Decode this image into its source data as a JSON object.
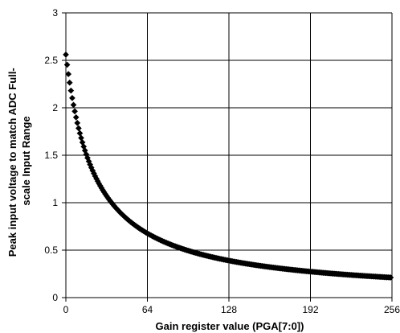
{
  "chart_data": {
    "type": "scatter",
    "xlabel": "Gain register value (PGA[7:0])",
    "ylabel_lines": [
      "Peak input voltage to match ADC Full-",
      "scale Input Range"
    ],
    "xlim": [
      0,
      256
    ],
    "ylim": [
      0,
      3
    ],
    "grid": true,
    "legend": "none",
    "marker": "diamond",
    "colors": {
      "marker": "#000000",
      "axis": "#000000",
      "grid": "#000000",
      "plot_background": "#ffffff"
    },
    "x_ticks": [
      0,
      64,
      128,
      192,
      256
    ],
    "x_tick_labels": [
      "0",
      "64",
      "128",
      "192",
      "256"
    ],
    "y_ticks": [
      0,
      0.5,
      1,
      1.5,
      2,
      2.5,
      3
    ],
    "y_tick_labels": [
      "0",
      "0.5",
      "1",
      "1.5",
      "2",
      "2.5",
      "3"
    ],
    "series": [
      {
        "model": "y = 2.56 * 23 / (x + 23)",
        "x_start": 0,
        "x_end": 255,
        "x_step": 1,
        "sample_points": [
          {
            "x": 0,
            "y": 2.56
          },
          {
            "x": 16,
            "y": 1.51
          },
          {
            "x": 32,
            "y": 1.07
          },
          {
            "x": 64,
            "y": 0.68
          },
          {
            "x": 128,
            "y": 0.39
          },
          {
            "x": 192,
            "y": 0.27
          },
          {
            "x": 255,
            "y": 0.21
          }
        ]
      }
    ]
  }
}
